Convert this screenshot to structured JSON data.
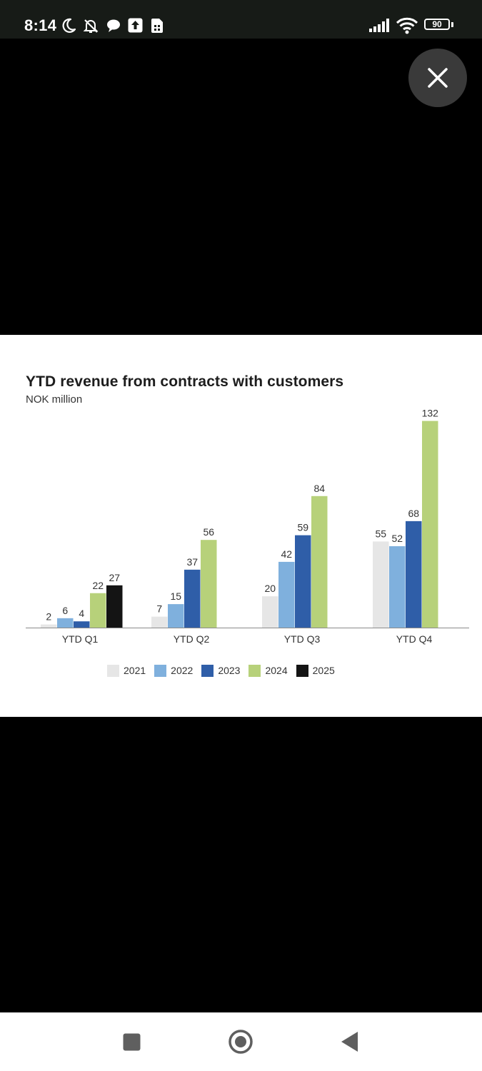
{
  "status_bar": {
    "time": "8:14",
    "battery": "90",
    "icons": [
      "moon-icon",
      "bell-off-icon",
      "chat-bubble-icon",
      "upload-icon",
      "sim-card-icon",
      "signal-icon",
      "wifi-icon",
      "battery-icon"
    ]
  },
  "viewer": {
    "close_icon": "close-icon"
  },
  "chart_data": {
    "type": "bar",
    "title": "YTD revenue from contracts with customers",
    "subtitle": "NOK million",
    "categories": [
      "YTD Q1",
      "YTD Q2",
      "YTD Q3",
      "YTD Q4"
    ],
    "series": [
      {
        "name": "2021",
        "color": "#e6e6e6",
        "values": [
          2,
          7,
          20,
          55
        ]
      },
      {
        "name": "2022",
        "color": "#7fb0dd",
        "values": [
          6,
          15,
          42,
          52
        ]
      },
      {
        "name": "2023",
        "color": "#2f5ea8",
        "values": [
          4,
          37,
          59,
          68
        ]
      },
      {
        "name": "2024",
        "color": "#b7d17a",
        "values": [
          22,
          56,
          84,
          132
        ]
      },
      {
        "name": "2025",
        "color": "#141414",
        "values": [
          27,
          null,
          null,
          null
        ]
      }
    ],
    "ylim": [
      0,
      140
    ],
    "grid": false,
    "legend_position": "bottom"
  },
  "nav_bar": {
    "buttons": [
      "recents-square-icon",
      "home-circle-icon",
      "back-triangle-icon"
    ]
  }
}
